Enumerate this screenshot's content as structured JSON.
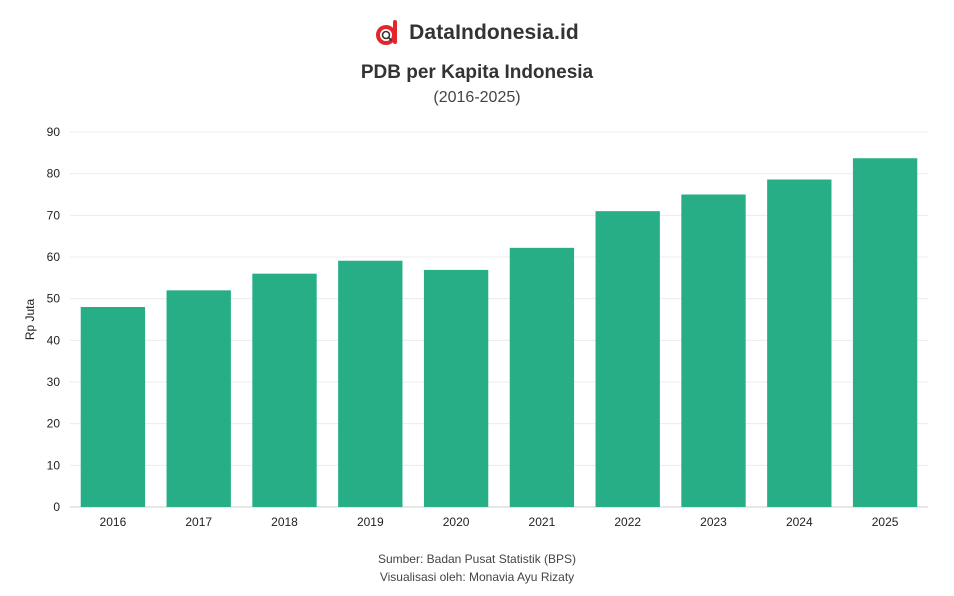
{
  "brand": {
    "name": "DataIndonesia.id"
  },
  "header": {
    "title": "PDB per Kapita Indonesia",
    "subtitle": "(2016-2025)"
  },
  "footer": {
    "source": "Sumber: Badan Pusat Statistik (BPS)",
    "credit": "Visualisasi oleh: Monavia Ayu Rizaty"
  },
  "colors": {
    "bar": "#27ae87",
    "brand_red": "#e4262c"
  },
  "chart_data": {
    "type": "bar",
    "categories": [
      "2016",
      "2017",
      "2018",
      "2019",
      "2020",
      "2021",
      "2022",
      "2023",
      "2024",
      "2025"
    ],
    "values": [
      48,
      52,
      56,
      59.1,
      56.9,
      62.2,
      71,
      75,
      78.6,
      83.7
    ],
    "xlabel": "",
    "ylabel": "Rp Juta",
    "ylim": [
      0,
      90
    ],
    "yticks": [
      0,
      10,
      20,
      30,
      40,
      50,
      60,
      70,
      80,
      90
    ],
    "grid": true
  }
}
